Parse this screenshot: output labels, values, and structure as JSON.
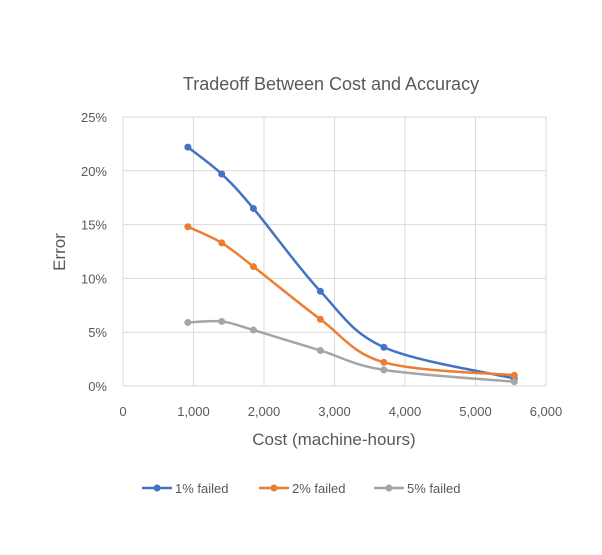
{
  "chart_data": {
    "type": "line",
    "title": "Tradeoff Between Cost and Accuracy",
    "xlabel": "Cost (machine-hours)",
    "ylabel": "Error",
    "xlim": [
      0,
      6000
    ],
    "ylim": [
      0,
      25
    ],
    "x_ticks": [
      "0",
      "1,000",
      "2,000",
      "3,000",
      "4,000",
      "5,000",
      "6,000"
    ],
    "y_ticks": [
      "0%",
      "5%",
      "10%",
      "15%",
      "20%",
      "25%"
    ],
    "grid": true,
    "legend_position": "bottom",
    "series": [
      {
        "name": "1% failed",
        "color": "#4472C4",
        "x": [
          920,
          1400,
          1850,
          2800,
          3700,
          5550
        ],
        "y": [
          22.2,
          19.7,
          16.5,
          8.8,
          3.6,
          0.7
        ]
      },
      {
        "name": "2% failed",
        "color": "#ED7D31",
        "x": [
          920,
          1400,
          1850,
          2800,
          3700,
          5550
        ],
        "y": [
          14.8,
          13.3,
          11.1,
          6.2,
          2.2,
          1.0
        ]
      },
      {
        "name": "5% failed",
        "color": "#A5A5A5",
        "x": [
          920,
          1400,
          1850,
          2800,
          3700,
          5550
        ],
        "y": [
          5.9,
          6.0,
          5.2,
          3.3,
          1.5,
          0.4
        ]
      }
    ]
  }
}
